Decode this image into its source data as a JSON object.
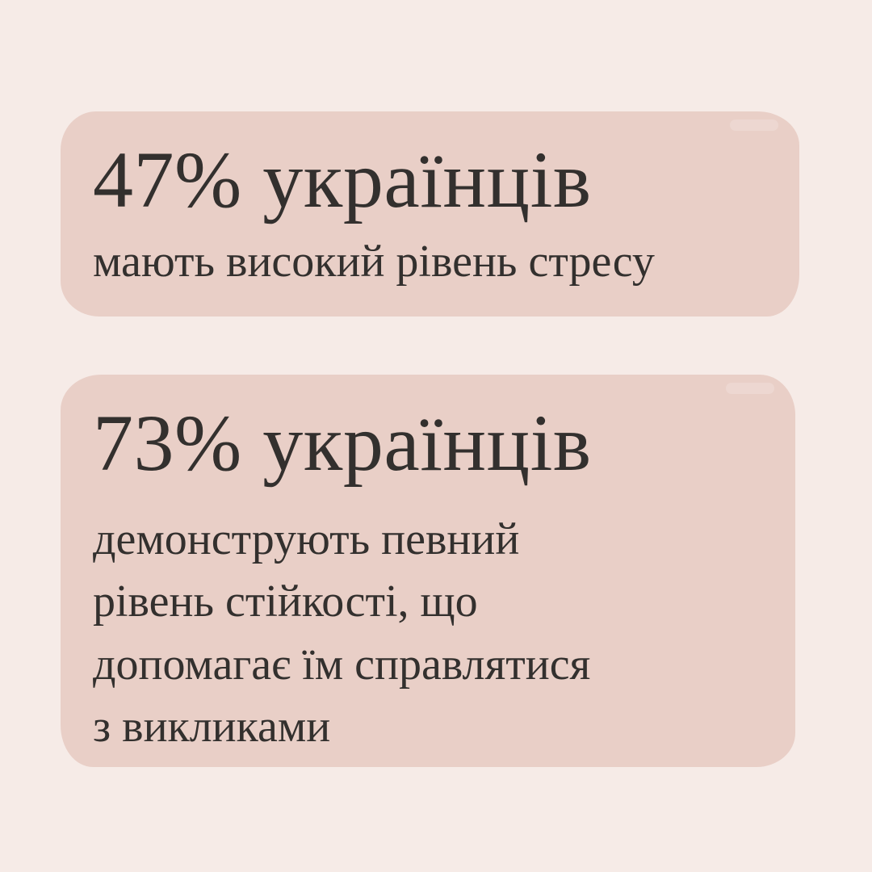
{
  "canvas": {
    "background_color": "#f6ebe7",
    "card_background_color": "#e9cfc7",
    "text_color": "#33302e"
  },
  "cards": [
    {
      "stat": "47% українців",
      "description_lines": [
        "мають високий рівень стресу"
      ]
    },
    {
      "stat": "73% українців",
      "description_lines": [
        "демонструють певний",
        "рівень стійкості, що",
        "допомагає їм справлятися",
        "з викликами"
      ]
    }
  ]
}
